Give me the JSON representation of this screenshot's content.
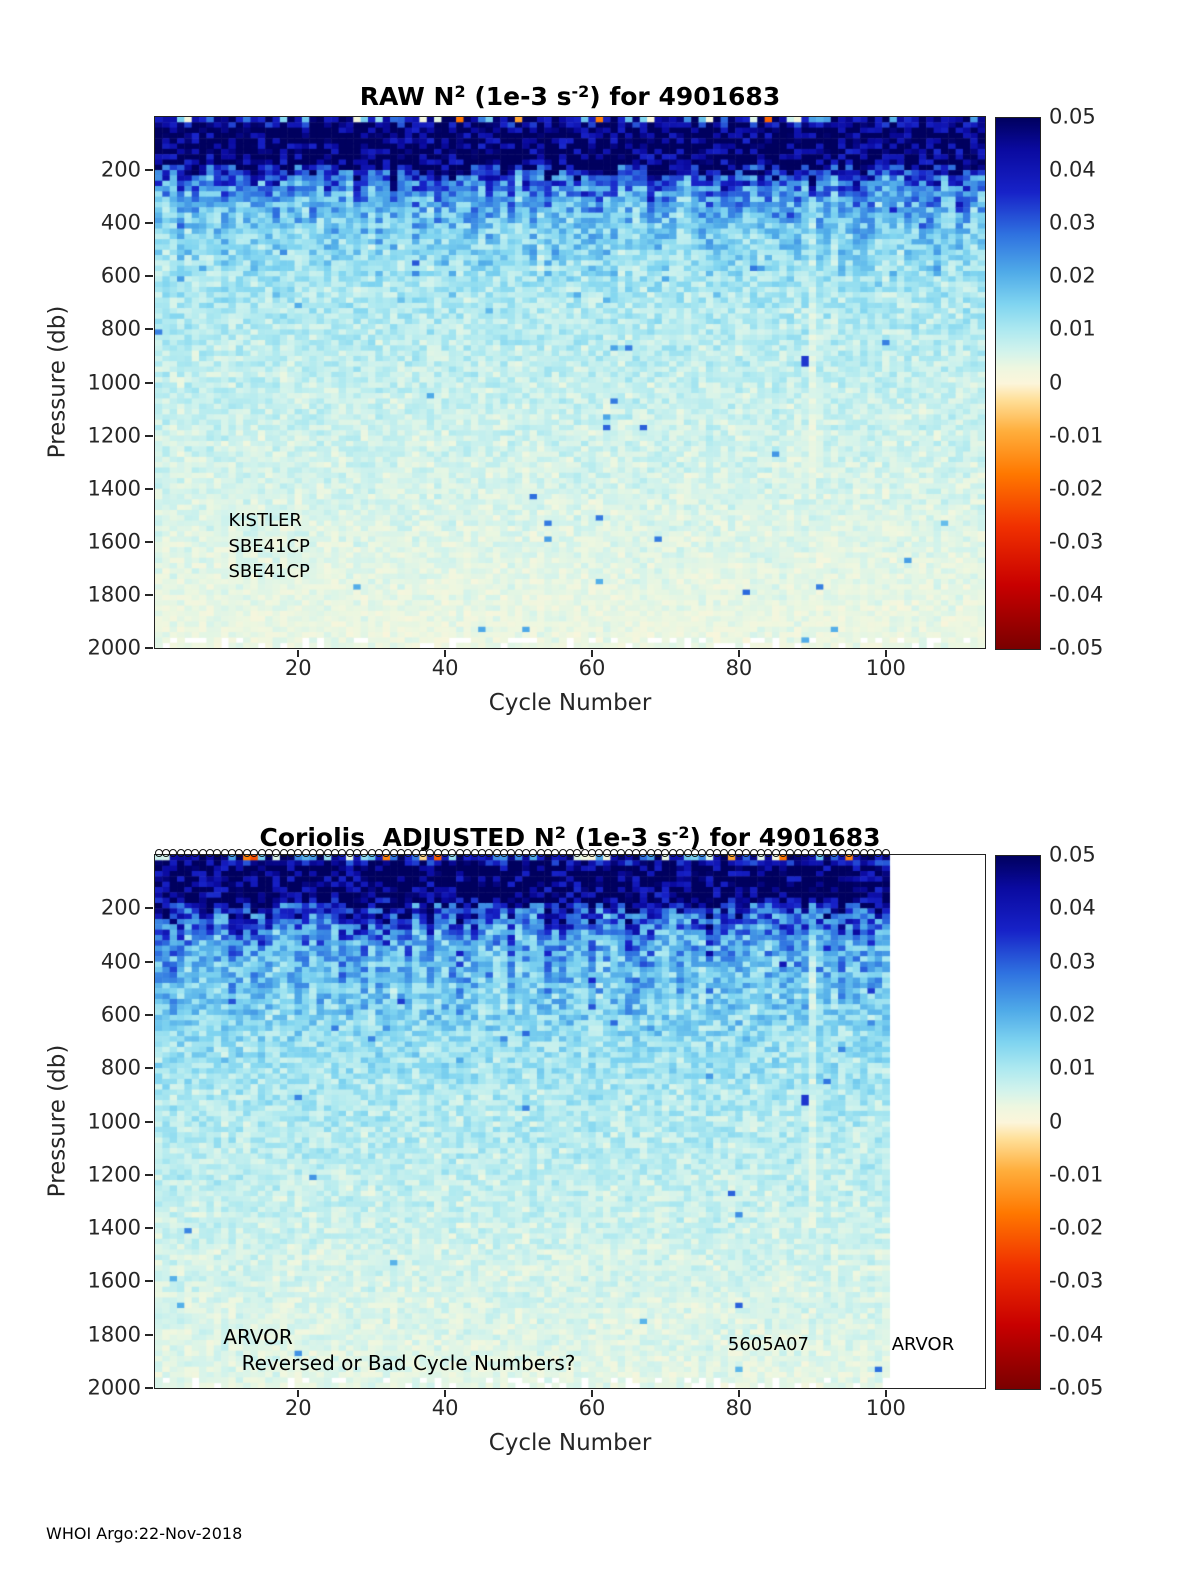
{
  "page": {
    "background": "#ffffff"
  },
  "footer": {
    "credit": "WHOI Argo:22-Nov-2018"
  },
  "colorbar": {
    "ticks": [
      "0.05",
      "0.04",
      "0.03",
      "0.02",
      "0.01",
      "0",
      "-0.01",
      "-0.02",
      "-0.03",
      "-0.04",
      "-0.05"
    ],
    "value_range": [
      -0.05,
      0.05
    ],
    "stops": [
      {
        "v": -0.05,
        "c": "#7A0000"
      },
      {
        "v": -0.038,
        "c": "#C80000"
      },
      {
        "v": -0.027,
        "c": "#F03000"
      },
      {
        "v": -0.017,
        "c": "#FF7800"
      },
      {
        "v": -0.009,
        "c": "#FFAE3C"
      },
      {
        "v": -0.003,
        "c": "#FFE09A"
      },
      {
        "v": 0.0,
        "c": "#FCF5DA"
      },
      {
        "v": 0.003,
        "c": "#EDF7E0"
      },
      {
        "v": 0.006,
        "c": "#D2F3EC"
      },
      {
        "v": 0.01,
        "c": "#AEE9F0"
      },
      {
        "v": 0.015,
        "c": "#7FD4F0"
      },
      {
        "v": 0.021,
        "c": "#4FAAE8"
      },
      {
        "v": 0.028,
        "c": "#2F72E0"
      },
      {
        "v": 0.036,
        "c": "#1722C8"
      },
      {
        "v": 0.044,
        "c": "#0A0AA0"
      },
      {
        "v": 0.05,
        "c": "#00005F"
      }
    ]
  },
  "figures": [
    {
      "title_parts": [
        {
          "t": "RAW N"
        },
        {
          "t": "2",
          "sup": true
        },
        {
          "t": " (1e-3 s"
        },
        {
          "t": "-2",
          "sup": true
        },
        {
          "t": ") for 4901683"
        }
      ],
      "xlabel": "Cycle Number",
      "ylabel": "Pressure (db)",
      "annotations": [
        {
          "text": "KISTLER",
          "cycle": 10.5,
          "pressure": 1520,
          "size": 18
        },
        {
          "text": "SBE41CP",
          "cycle": 10.5,
          "pressure": 1618,
          "size": 18
        },
        {
          "text": "SBE41CP",
          "cycle": 10.5,
          "pressure": 1712,
          "size": 18
        }
      ]
    },
    {
      "title_parts": [
        {
          "t": "Coriolis  ADJUSTED N"
        },
        {
          "t": "2",
          "sup": true
        },
        {
          "t": " (1e-3 s"
        },
        {
          "t": "-2",
          "sup": true
        },
        {
          "t": ") for 4901683"
        }
      ],
      "xlabel": "Cycle Number",
      "ylabel": "Pressure (db)",
      "annotations": [
        {
          "text": "ARVOR",
          "cycle": 9.8,
          "pressure": 1808,
          "size": 20
        },
        {
          "text": "Reversed or Bad Cycle Numbers?",
          "cycle": 12.3,
          "pressure": 1908,
          "size": 20
        },
        {
          "text": "5605A07",
          "cycle": 78.5,
          "pressure": 1838,
          "size": 18
        },
        {
          "text": "ARVOR",
          "cycle": 100.8,
          "pressure": 1838,
          "size": 18
        }
      ],
      "top_markers": {
        "shape": "circle",
        "from": 1,
        "to": 100
      }
    }
  ],
  "chart_data": [
    {
      "type": "heatmap",
      "title": "RAW N^2 (1e-3 s^-2) for 4901683",
      "xlabel": "Cycle Number",
      "ylabel": "Pressure (db)",
      "x_range": [
        1,
        113
      ],
      "y_range": [
        0,
        2000
      ],
      "y_axis_reversed": true,
      "x_ticks": [
        20,
        40,
        60,
        80,
        100
      ],
      "y_ticks": [
        200,
        400,
        600,
        800,
        1000,
        1200,
        1400,
        1600,
        1800,
        2000
      ],
      "value_label": "N^2 (1e-3 s^-2)",
      "value_range": [
        -0.05,
        0.05
      ],
      "data_extent_cycles": 113,
      "mean_profile_pressure_value": [
        [
          0,
          0.015
        ],
        [
          40,
          0.05
        ],
        [
          180,
          0.048
        ],
        [
          230,
          0.03
        ],
        [
          300,
          0.021
        ],
        [
          420,
          0.015
        ],
        [
          600,
          0.011
        ],
        [
          800,
          0.009
        ],
        [
          1000,
          0.0075
        ],
        [
          1300,
          0.006
        ],
        [
          1600,
          0.0045
        ],
        [
          2000,
          0.003
        ]
      ],
      "notable_features": [
        {
          "cycle": 89,
          "pressure": 900,
          "value": 0.034,
          "note": "isolated blue spot"
        },
        {
          "cycle": 90,
          "note": "pale vertical streak between 300 and 1400 db"
        },
        {
          "note": "scattered missing (white) cells near 2000 db"
        }
      ]
    },
    {
      "type": "heatmap",
      "title": "Coriolis ADJUSTED N^2 (1e-3 s^-2) for 4901683",
      "xlabel": "Cycle Number",
      "ylabel": "Pressure (db)",
      "x_range": [
        1,
        113
      ],
      "y_range": [
        0,
        2000
      ],
      "y_axis_reversed": true,
      "x_ticks": [
        20,
        40,
        60,
        80,
        100
      ],
      "y_ticks": [
        200,
        400,
        600,
        800,
        1000,
        1200,
        1400,
        1600,
        1800,
        2000
      ],
      "value_label": "N^2 (1e-3 s^-2)",
      "value_range": [
        -0.05,
        0.05
      ],
      "data_extent_cycles": 100,
      "mean_profile_pressure_value": [
        [
          0,
          0.015
        ],
        [
          40,
          0.05
        ],
        [
          160,
          0.048
        ],
        [
          230,
          0.032
        ],
        [
          320,
          0.022
        ],
        [
          450,
          0.017
        ],
        [
          650,
          0.013
        ],
        [
          900,
          0.01
        ],
        [
          1200,
          0.008
        ],
        [
          1500,
          0.006
        ],
        [
          2000,
          0.004
        ]
      ],
      "notable_features": [
        {
          "cycle": 89,
          "pressure": 900,
          "value": 0.034,
          "note": "isolated blue spot"
        },
        {
          "cycle": 90,
          "note": "pale vertical streak between 300 and 1400 db"
        },
        {
          "note": "no data beyond cycle 100 (white region inside axes)"
        },
        {
          "note": "black circle outline markers along the 0 db edge for cycles 1-100"
        }
      ]
    }
  ]
}
